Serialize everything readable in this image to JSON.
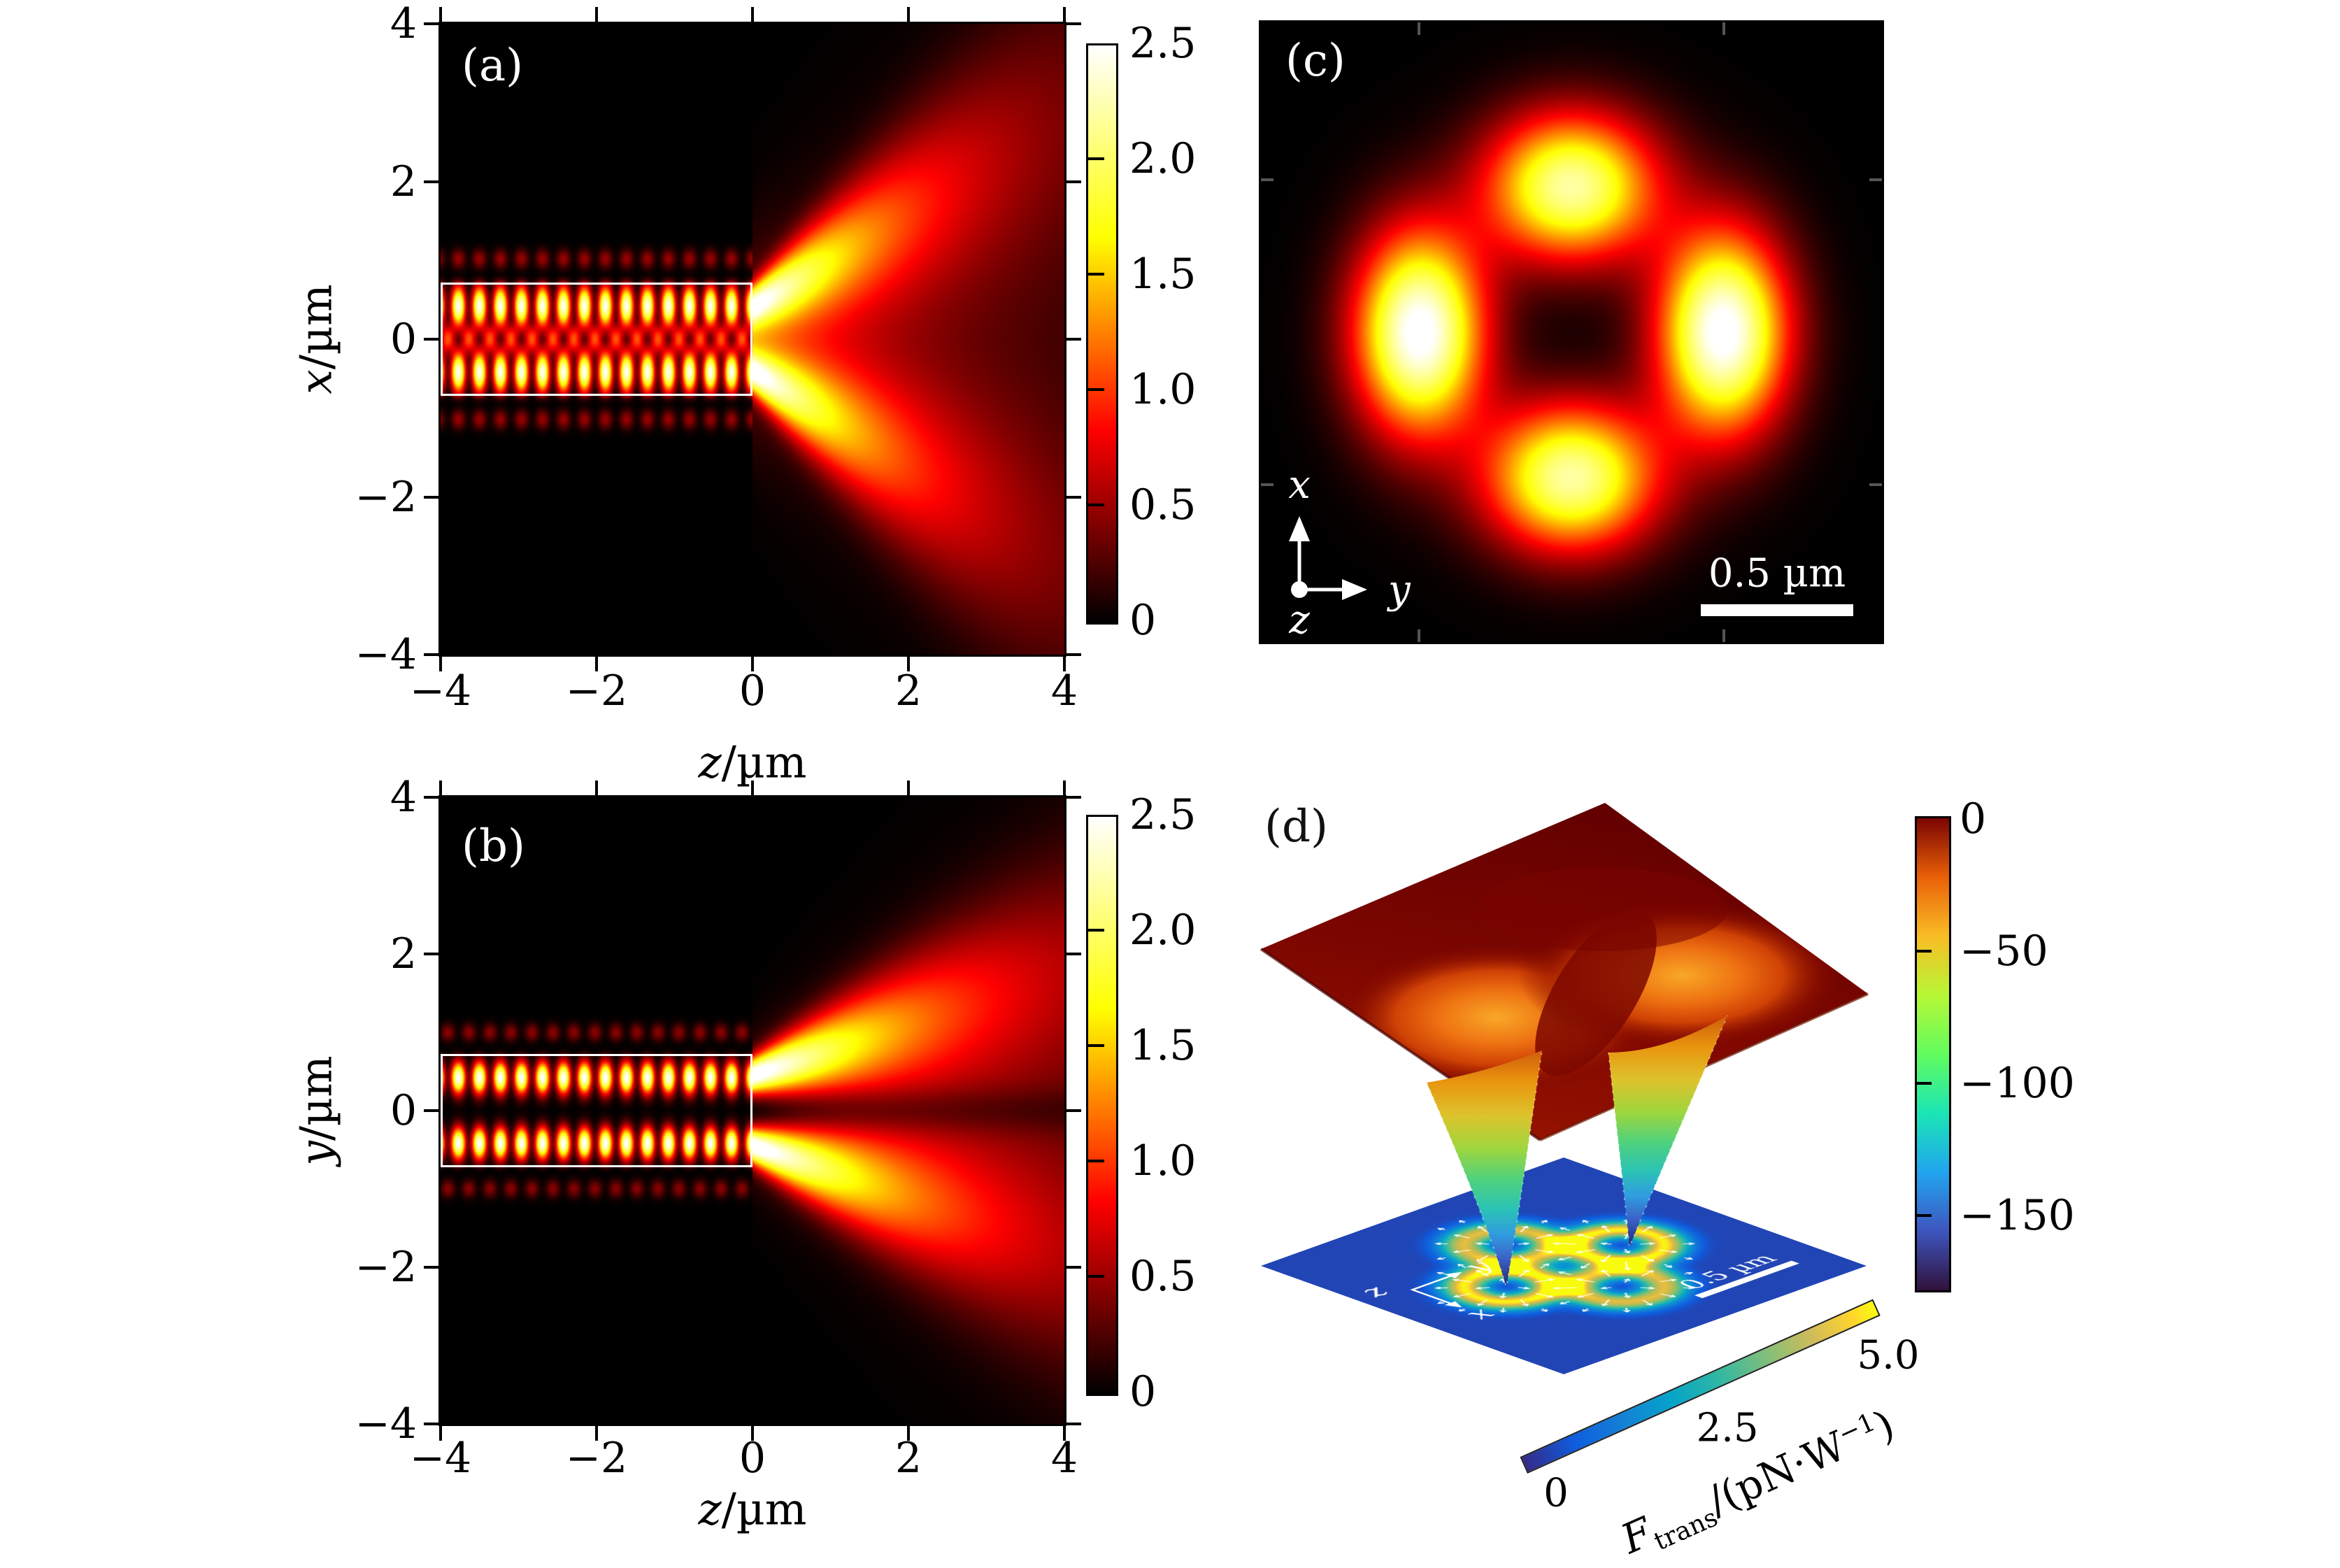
{
  "figure_type": "four-panel optics figure: waveguide field maps, emitted intensity pattern, 3D trapping potential",
  "panels": {
    "a": {
      "label": "(a)",
      "xlabel_var": "z",
      "xlabel_unit": "/µm",
      "ylabel_var": "x",
      "ylabel_unit": "/µm",
      "x_tick_labels": [
        "−4",
        "−2",
        "0",
        "2",
        "4"
      ],
      "y_tick_labels": [
        "4",
        "2",
        "0",
        "−2",
        "−4"
      ],
      "colorbar_tick_labels": [
        "2.5",
        "2.0",
        "1.5",
        "1.0",
        "0.5",
        "0"
      ]
    },
    "b": {
      "label": "(b)",
      "xlabel_var": "z",
      "xlabel_unit": "/µm",
      "ylabel_var": "y",
      "ylabel_unit": "/µm",
      "x_tick_labels": [
        "−4",
        "−2",
        "0",
        "2",
        "4"
      ],
      "y_tick_labels": [
        "4",
        "2",
        "0",
        "−2",
        "−4"
      ],
      "colorbar_tick_labels": [
        "2.5",
        "2.0",
        "1.5",
        "1.0",
        "0.5",
        "0"
      ]
    },
    "c": {
      "label": "(c)",
      "axis_x": "x",
      "axis_y": "y",
      "axis_z": "z",
      "scalebar": "0.5 µm"
    },
    "d": {
      "label": "(d)",
      "colorbar_tick_labels": [
        "0",
        "−50",
        "−100",
        "−150"
      ],
      "force_tick_labels": [
        "0",
        "2.5",
        "5.0"
      ],
      "force_label_f": "F",
      "force_label_sub": "trans",
      "force_label_mid": "/(pN·W",
      "force_label_sup": "−1",
      "force_label_end": ")",
      "axis_x": "x",
      "axis_y": "y",
      "axis_z": "z",
      "scalebar": "0.5 µm"
    }
  },
  "chart_data": [
    {
      "id": "a",
      "type": "heatmap",
      "panel_label": "(a)",
      "plane": "x-z",
      "xlabel": "z/µm",
      "ylabel": "x/µm",
      "xlim": [
        -4,
        4
      ],
      "ylim": [
        -4,
        4
      ],
      "xticks": [
        -4,
        -2,
        0,
        2,
        4
      ],
      "yticks": [
        4,
        2,
        0,
        -2,
        -4
      ],
      "colormap": "hot",
      "clim": [
        0,
        2.5
      ],
      "colorbar_ticks": [
        2.5,
        2.0,
        1.5,
        1.0,
        0.5,
        0
      ],
      "waveguide_outline_um": {
        "z": [
          -4,
          0
        ],
        "x": [
          -0.72,
          0.72
        ]
      },
      "standing_wave_period_um": 0.27,
      "lobe_offset_um": 0.42,
      "content": "guided two-lobe standing-wave mode |E| inside waveguide for z<0 (white outline); two diverging emission lobes plus dim central fan for z>0"
    },
    {
      "id": "b",
      "type": "heatmap",
      "panel_label": "(b)",
      "plane": "y-z",
      "xlabel": "z/µm",
      "ylabel": "y/µm",
      "xlim": [
        -4,
        4
      ],
      "ylim": [
        -4,
        4
      ],
      "xticks": [
        -4,
        -2,
        0,
        2,
        4
      ],
      "yticks": [
        4,
        2,
        0,
        -2,
        -4
      ],
      "colormap": "hot",
      "clim": [
        0,
        2.5
      ],
      "colorbar_ticks": [
        2.5,
        2.0,
        1.5,
        1.0,
        0.5,
        0
      ],
      "waveguide_outline_um": {
        "z": [
          -4,
          0
        ],
        "y": [
          -0.72,
          0.72
        ]
      },
      "standing_wave_period_um": 0.27,
      "lobe_offset_um": 0.42,
      "content": "two-lobe mode with dark node at y=0 for z<0; emitted lobes spread slowly for z>0, node line at y=0 persists"
    },
    {
      "id": "c",
      "type": "heatmap",
      "panel_label": "(c)",
      "plane": "x-y",
      "colormap": "hot",
      "clim": [
        0,
        2.5
      ],
      "extent_um": [
        -1.02,
        1.02
      ],
      "lobes": [
        {
          "center_um": [
            -0.5,
            0
          ],
          "peak": 2.6
        },
        {
          "center_um": [
            0.5,
            0
          ],
          "peak": 2.6
        },
        {
          "center_um": [
            0,
            0.48
          ],
          "peak": 2.2
        },
        {
          "center_um": [
            0,
            -0.48
          ],
          "peak": 2.2
        }
      ],
      "scalebar_um": 0.5,
      "axes_indicator": [
        "x",
        "y",
        "z"
      ],
      "content": "four-lobe transverse intensity pattern; left/right lobes brightest (white cores), top/bottom lobes yellow"
    },
    {
      "id": "d",
      "type": "3d-surface",
      "panel_label": "(d)",
      "content": "optical trapping potential surface (dark-red plateau with orange bowl) with two deep funnel-shaped wells descending to a transverse-force plane",
      "depth_colorbar": {
        "colormap": "turbo reversed",
        "ticks": [
          0,
          -50,
          -100,
          -150
        ],
        "range": [
          -177,
          0
        ]
      },
      "wells": [
        {
          "tip": "left",
          "depth": -170
        },
        {
          "tip": "right",
          "depth": -165
        }
      ],
      "force_plane": {
        "label": "F_trans/(pN·W^−1)",
        "ticks": [
          0,
          2.5,
          5.0
        ],
        "range": [
          0,
          5
        ],
        "colormap": "parula",
        "scalebar_um": 0.5,
        "axes_indicator": [
          "z",
          "y",
          "x"
        ],
        "content": "four force-magnitude rings (zero at trap centers) with white quiver arrows pointing outward"
      }
    }
  ]
}
